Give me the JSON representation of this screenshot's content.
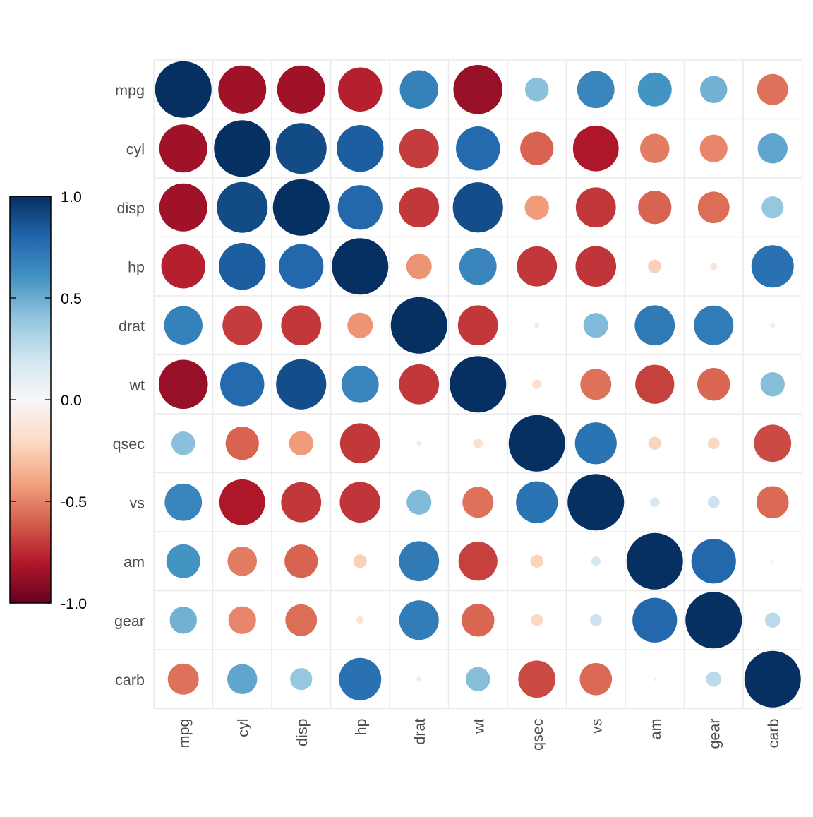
{
  "chart_data": {
    "type": "heatmap",
    "variables": [
      "mpg",
      "cyl",
      "disp",
      "hp",
      "drat",
      "wt",
      "qsec",
      "vs",
      "am",
      "gear",
      "carb"
    ],
    "matrix": [
      [
        1.0,
        -0.85,
        -0.85,
        -0.78,
        0.68,
        -0.87,
        0.42,
        0.66,
        0.6,
        0.48,
        -0.55
      ],
      [
        -0.85,
        1.0,
        0.9,
        0.83,
        -0.7,
        0.78,
        -0.59,
        -0.81,
        -0.52,
        -0.49,
        0.53
      ],
      [
        -0.85,
        0.9,
        1.0,
        0.79,
        -0.71,
        0.89,
        -0.43,
        -0.71,
        -0.59,
        -0.56,
        0.39
      ],
      [
        -0.78,
        0.83,
        0.79,
        1.0,
        -0.45,
        0.66,
        -0.71,
        -0.72,
        -0.24,
        -0.13,
        0.75
      ],
      [
        0.68,
        -0.7,
        -0.71,
        -0.45,
        1.0,
        -0.71,
        0.09,
        0.44,
        0.71,
        0.7,
        -0.09
      ],
      [
        -0.87,
        0.78,
        0.89,
        0.66,
        -0.71,
        1.0,
        -0.17,
        -0.55,
        -0.69,
        -0.58,
        0.43
      ],
      [
        0.42,
        -0.59,
        -0.43,
        -0.71,
        0.09,
        -0.17,
        1.0,
        0.74,
        -0.23,
        -0.21,
        -0.66
      ],
      [
        0.66,
        -0.81,
        -0.71,
        -0.72,
        0.44,
        -0.55,
        0.74,
        1.0,
        0.17,
        0.21,
        -0.57
      ],
      [
        0.6,
        -0.52,
        -0.59,
        -0.24,
        0.71,
        -0.69,
        -0.23,
        0.17,
        1.0,
        0.79,
        0.06
      ],
      [
        0.48,
        -0.49,
        -0.56,
        -0.13,
        0.7,
        -0.58,
        -0.21,
        0.21,
        0.79,
        1.0,
        0.27
      ],
      [
        -0.55,
        0.53,
        0.39,
        0.75,
        -0.09,
        0.43,
        -0.66,
        -0.57,
        0.06,
        0.27,
        1.0
      ]
    ],
    "marker": "circle",
    "size_encoding": "abs(r)",
    "color_scale": {
      "range": [
        -1.0,
        1.0
      ],
      "colors": [
        "#67001F",
        "#B2182B",
        "#D6604D",
        "#F4A582",
        "#FDDBC7",
        "#F7F7F7",
        "#D1E5F0",
        "#92C5DE",
        "#4393C3",
        "#2166AC",
        "#053061"
      ],
      "ticks": [
        "1.0",
        "0.5",
        "0.0",
        "-0.5",
        "-1.0"
      ],
      "tick_values": [
        1.0,
        0.5,
        0.0,
        -0.5,
        -1.0
      ],
      "legend_position": "left"
    },
    "grid": true,
    "title": "",
    "xlabel": "",
    "ylabel": ""
  }
}
